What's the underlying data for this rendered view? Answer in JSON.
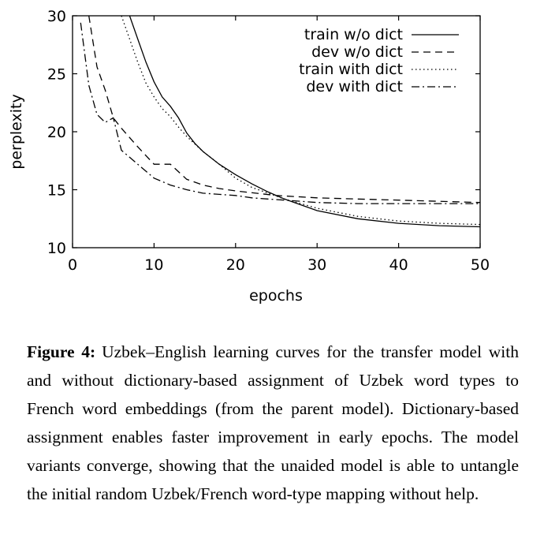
{
  "chart_data": {
    "type": "line",
    "xlabel": "epochs",
    "ylabel": "perplexity",
    "xlim": [
      0,
      50
    ],
    "ylim": [
      10,
      30
    ],
    "xticks": [
      0,
      10,
      20,
      30,
      40,
      50
    ],
    "yticks": [
      10,
      15,
      20,
      25,
      30
    ],
    "grid": false,
    "legend_position": "top-right",
    "series": [
      {
        "name": "train w/o dict",
        "dash": "solid",
        "x": [
          7,
          8,
          9,
          10,
          11,
          12,
          13,
          14,
          15,
          16,
          18,
          20,
          22,
          24,
          26,
          28,
          30,
          35,
          40,
          45,
          50
        ],
        "y": [
          30,
          28,
          26,
          24.3,
          23,
          22.2,
          21.2,
          19.9,
          19,
          18.3,
          17.2,
          16.3,
          15.5,
          14.8,
          14.2,
          13.7,
          13.2,
          12.5,
          12.1,
          11.9,
          11.8
        ]
      },
      {
        "name": "dev w/o dict",
        "dash": "dashed",
        "x": [
          2,
          3,
          4,
          5,
          6,
          8,
          10,
          12,
          14,
          16,
          18,
          20,
          25,
          30,
          35,
          40,
          45,
          50
        ],
        "y": [
          30,
          25.6,
          23.6,
          21.2,
          20.3,
          18.7,
          17.2,
          17.2,
          15.9,
          15.4,
          15.1,
          14.9,
          14.5,
          14.3,
          14.2,
          14.1,
          14.0,
          13.9
        ]
      },
      {
        "name": "train with dict",
        "dash": "dotted",
        "x": [
          6,
          7,
          8,
          9,
          10,
          11,
          12,
          13,
          14,
          16,
          18,
          20,
          22,
          24,
          26,
          28,
          30,
          35,
          40,
          45,
          50
        ],
        "y": [
          30,
          28,
          26,
          24.2,
          23,
          22,
          21.3,
          20.4,
          19.6,
          18.3,
          17.2,
          16,
          15.2,
          14.7,
          14.2,
          13.8,
          13.4,
          12.7,
          12.3,
          12.1,
          12.0
        ]
      },
      {
        "name": "dev with dict",
        "dash": "dashdot",
        "x": [
          1,
          2,
          3,
          4,
          5,
          6,
          8,
          10,
          12,
          14,
          16,
          18,
          20,
          22,
          24,
          26,
          28,
          30,
          35,
          40,
          45,
          50
        ],
        "y": [
          29.4,
          24,
          21.5,
          20.8,
          21.2,
          18.4,
          17.2,
          16,
          15.4,
          15,
          14.7,
          14.6,
          14.5,
          14.3,
          14.2,
          14.1,
          14.0,
          13.9,
          13.8,
          13.8,
          13.8,
          13.8
        ]
      }
    ]
  },
  "caption": {
    "label": "Figure 4:",
    "text": "Uzbek–English learning curves for the transfer model with and without dictionary-based assignment of Uzbek word types to French word embeddings (from the parent model). Dictionary-based assignment enables faster improvement in early epochs. The model variants converge, showing that the unaided model is able to untangle the initial random Uzbek/French word-type mapping without help."
  }
}
